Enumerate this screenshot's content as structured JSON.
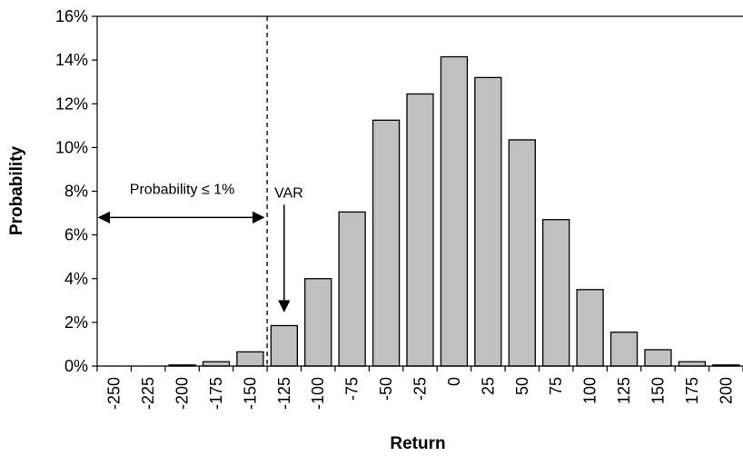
{
  "chart_data": {
    "type": "bar",
    "xlabel": "Return",
    "ylabel": "Probability",
    "categories": [
      "-250",
      "-225",
      "-200",
      "-175",
      "-150",
      "-125",
      "-100",
      "-75",
      "-50",
      "-25",
      "0",
      "25",
      "50",
      "75",
      "100",
      "125",
      "150",
      "175",
      "200"
    ],
    "values": [
      0.0,
      0.0,
      0.05,
      0.2,
      0.65,
      1.85,
      4.0,
      7.05,
      11.25,
      12.45,
      14.15,
      13.2,
      10.35,
      6.7,
      3.5,
      1.55,
      0.75,
      0.2,
      0.05
    ],
    "value_unit": "%",
    "ylim": [
      0,
      16
    ],
    "yticks": [
      "0%",
      "2%",
      "4%",
      "6%",
      "8%",
      "10%",
      "12%",
      "14%",
      "16%"
    ],
    "grid": false,
    "bar_color": "#c0c0c0",
    "bar_edge_color": "#000000",
    "annotations": {
      "probability_label": "Probability ≤ 1%",
      "var_label": "VAR",
      "var_line_at_x": -137.5,
      "arrow_level_y": 6.8
    }
  }
}
